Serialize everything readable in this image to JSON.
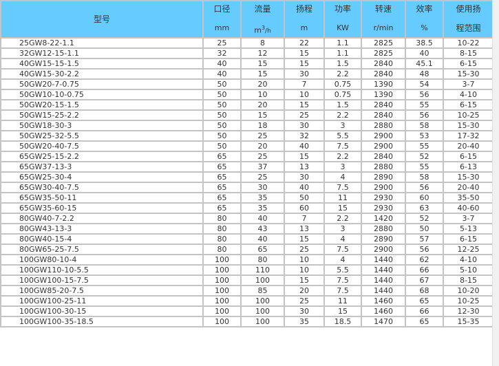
{
  "header": {
    "model": "型号",
    "columns": [
      {
        "name": "口径",
        "unit": "mm"
      },
      {
        "name": "流量",
        "unit_base": "m",
        "unit_sup": "3",
        "unit_rest": "/h"
      },
      {
        "name": "扬程",
        "unit": "m"
      },
      {
        "name": "功率",
        "unit": "KW"
      },
      {
        "name": "转速",
        "unit": "r/min"
      },
      {
        "name": "效率",
        "unit": "%"
      },
      {
        "name": "使用扬",
        "unit": "程范围"
      }
    ]
  },
  "colors": {
    "header_bg": "#66ccff",
    "border": "#c4c4c4"
  },
  "rows": [
    [
      "25GW8-22-1.1",
      "25",
      "8",
      "22",
      "1.1",
      "2825",
      "38.5",
      "10-22"
    ],
    [
      "32GW12-15-1.1",
      "32",
      "12",
      "15",
      "1.1",
      "2825",
      "40",
      "8-15"
    ],
    [
      "40GW15-15-1.5",
      "40",
      "15",
      "15",
      "1.5",
      "2840",
      "45.1",
      "6-15"
    ],
    [
      "40GW15-30-2.2",
      "40",
      "15",
      "30",
      "2.2",
      "2840",
      "48",
      "15-30"
    ],
    [
      "50GW20-7-0.75",
      "50",
      "20",
      "7",
      "0.75",
      "1390",
      "54",
      "3-7"
    ],
    [
      "50GW10-10-0.75",
      "50",
      "10",
      "10",
      "0.75",
      "1390",
      "56",
      "4-10"
    ],
    [
      "50GW20-15-1.5",
      "50",
      "20",
      "15",
      "1.5",
      "2840",
      "55",
      "6-15"
    ],
    [
      "50GW15-25-2.2",
      "50",
      "15",
      "25",
      "2.2",
      "2840",
      "56",
      "10-25"
    ],
    [
      "50GW18-30-3",
      "50",
      "18",
      "30",
      "3",
      "2880",
      "58",
      "15-30"
    ],
    [
      "50GW25-32-5.5",
      "50",
      "25",
      "32",
      "5.5",
      "2900",
      "53",
      "17-32"
    ],
    [
      "50GW20-40-7.5",
      "50",
      "20",
      "40",
      "7.5",
      "2900",
      "55",
      "20-40"
    ],
    [
      "65GW25-15-2.2",
      "65",
      "25",
      "15",
      "2.2",
      "2840",
      "52",
      "6-15"
    ],
    [
      "65GW37-13-3",
      "65",
      "37",
      "13",
      "3",
      "2880",
      "55",
      "6-13"
    ],
    [
      "65GW25-30-4",
      "65",
      "25",
      "30",
      "4",
      "2890",
      "58",
      "15-30"
    ],
    [
      "65GW30-40-7.5",
      "65",
      "30",
      "40",
      "7.5",
      "2900",
      "56",
      "20-40"
    ],
    [
      "65GW35-50-11",
      "65",
      "35",
      "50",
      "11",
      "2930",
      "60",
      "35-50"
    ],
    [
      "65GW35-60-15",
      "65",
      "35",
      "60",
      "15",
      "2930",
      "63",
      "40-60"
    ],
    [
      "80GW40-7-2.2",
      "80",
      "40",
      "7",
      "2.2",
      "1420",
      "52",
      "3-7"
    ],
    [
      "80GW43-13-3",
      "80",
      "43",
      "13",
      "3",
      "2880",
      "50",
      "5-13"
    ],
    [
      "80GW40-15-4",
      "80",
      "40",
      "15",
      "4",
      "2890",
      "57",
      "6-15"
    ],
    [
      "80GW65-25-7.5",
      "80",
      "65",
      "25",
      "7.5",
      "2900",
      "56",
      "12-25"
    ],
    [
      "100GW80-10-4",
      "100",
      "80",
      "10",
      "4",
      "1440",
      "62",
      "4-10"
    ],
    [
      "100GW110-10-5.5",
      "100",
      "110",
      "10",
      "5.5",
      "1440",
      "66",
      "5-10"
    ],
    [
      "100GW100-15-7.5",
      "100",
      "100",
      "15",
      "7.5",
      "1440",
      "67",
      "8-15"
    ],
    [
      "100GW85-20-7.5",
      "100",
      "85",
      "20",
      "7.5",
      "1440",
      "68",
      "10-20"
    ],
    [
      "100GW100-25-11",
      "100",
      "100",
      "25",
      "11",
      "1460",
      "65",
      "10-25"
    ],
    [
      "100GW100-30-15",
      "100",
      "100",
      "30",
      "15",
      "1460",
      "66",
      "12-30"
    ],
    [
      "100GW100-35-18.5",
      "100",
      "100",
      "35",
      "18.5",
      "1470",
      "65",
      "15-35"
    ]
  ]
}
